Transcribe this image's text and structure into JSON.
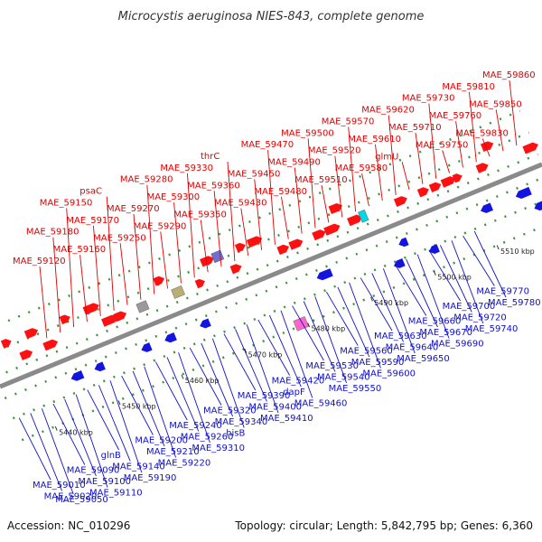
{
  "title": "Microcystis aeruginosa NIES-843, complete genome",
  "accession": "Accession: NC_010296",
  "summary": "Topology: circular; Length: 5,842,795 bp; Genes: 6,360",
  "colors": {
    "forward": "#ff1010",
    "reverse": "#1414e0",
    "backbone": "#8a8a8a",
    "top_label": "#e00000",
    "bottom_label": "#1010c8",
    "tick": "#2a8a2a"
  },
  "kbp_ticks": [
    {
      "value": 5440,
      "label": "5440 kbp"
    },
    {
      "value": 5450,
      "label": "5450 kbp"
    },
    {
      "value": 5460,
      "label": "5460 kbp"
    },
    {
      "value": 5470,
      "label": "5470 kbp"
    },
    {
      "value": 5480,
      "label": "5480 kbp"
    },
    {
      "value": 5490,
      "label": "5490 kbp"
    },
    {
      "value": 5500,
      "label": "5500 kbp"
    },
    {
      "value": 5510,
      "label": "5510 kbp"
    }
  ],
  "top_labels": [
    "MAE_59120",
    "MAE_59180",
    "MAE_59150",
    "MAE_59160",
    "MAE_59170",
    "psaC",
    "MAE_59250",
    "MAE_59270",
    "MAE_59280",
    "MAE_59290",
    "MAE_59300",
    "MAE_59330",
    "MAE_59350",
    "MAE_59360",
    "thrC",
    "MAE_59430",
    "MAE_59450",
    "MAE_59470",
    "MAE_59480",
    "MAE_59490",
    "MAE_59500",
    "MAE_59510",
    "MAE_59520",
    "MAE_59570",
    "MAE_59580",
    "MAE_59610",
    "MAE_59620",
    "glmU",
    "MAE_59710",
    "MAE_59730",
    "MAE_59750",
    "MAE_59760",
    "MAE_59810",
    "MAE_59830",
    "MAE_59850",
    "MAE_59860"
  ],
  "bottom_labels": [
    "MAE_59010",
    "MAE_59020",
    "MAE_59050",
    "MAE_59090",
    "MAE_59100",
    "MAE_59110",
    "glnB",
    "MAE_59140",
    "MAE_59190",
    "MAE_59200",
    "MAE_59210",
    "MAE_59220",
    "MAE_59240",
    "MAE_59260",
    "MAE_59310",
    "MAE_59320",
    "MAE_59340",
    "hisB",
    "MAE_59390",
    "MAE_59400",
    "MAE_59410",
    "MAE_59420",
    "dapF",
    "MAE_59460",
    "MAE_59530",
    "MAE_59540",
    "MAE_59550",
    "MAE_59560",
    "MAE_59590",
    "MAE_59600",
    "MAE_59630",
    "MAE_59640",
    "MAE_59650",
    "MAE_59660",
    "MAE_59670",
    "MAE_59690",
    "MAE_59700",
    "MAE_59720",
    "MAE_59740",
    "MAE_59770",
    "MAE_59780"
  ]
}
